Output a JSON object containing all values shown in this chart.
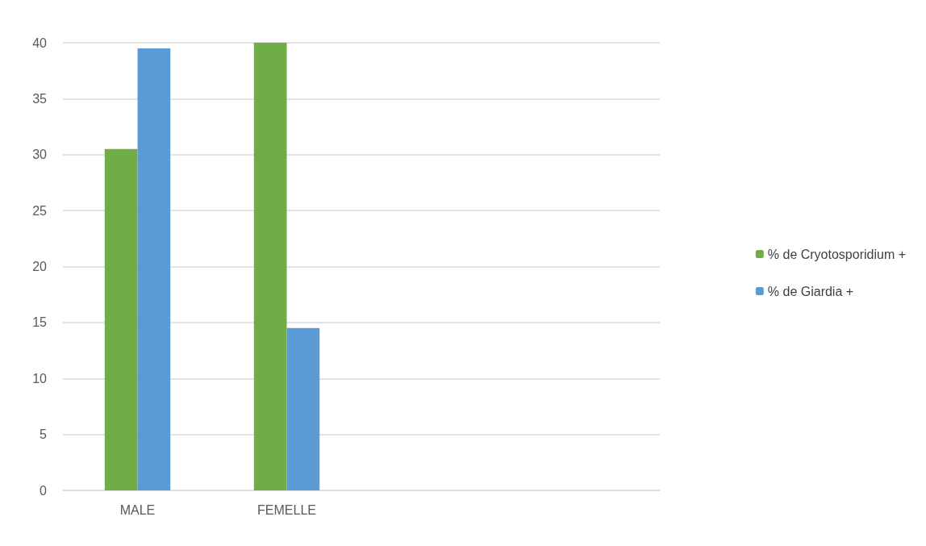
{
  "chart_data": {
    "type": "bar",
    "categories": [
      "MALE",
      "FEMELLE",
      null,
      null
    ],
    "series": [
      {
        "name": "% de Cryotosporidium +",
        "color": "#70ad47",
        "values": [
          30.5,
          40,
          null,
          null
        ]
      },
      {
        "name": "% de Giardia +",
        "color": "#5b9bd5",
        "values": [
          39.5,
          14.5,
          null,
          null
        ]
      }
    ],
    "ylim": [
      0,
      40
    ],
    "yticks": [
      0,
      5,
      10,
      15,
      20,
      25,
      30,
      35,
      40
    ],
    "grid": "y",
    "legend": "right"
  }
}
